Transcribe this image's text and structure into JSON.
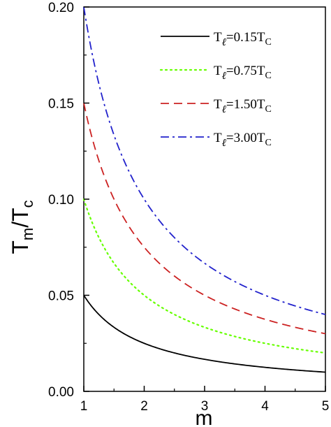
{
  "chart_data": {
    "type": "line",
    "xlabel": "m",
    "ylabel_main": "T",
    "ylabel_sub1": "m",
    "ylabel_slash": "/T",
    "ylabel_sub2": "c",
    "xlim": [
      1,
      5
    ],
    "ylim": [
      0,
      0.2
    ],
    "xticks": [
      1,
      2,
      3,
      4,
      5
    ],
    "yticks": [
      0.0,
      0.05,
      0.1,
      0.15,
      0.2
    ],
    "ytick_labels": [
      "0.00",
      "0.05",
      "0.10",
      "0.15",
      "0.20"
    ],
    "xtick_labels": [
      "1",
      "2",
      "3",
      "4",
      "5"
    ],
    "grid": false,
    "legend_position": "top-right",
    "series": [
      {
        "legend_main": "T",
        "legend_sub": "ℓ",
        "legend_value": "=0.15T",
        "legend_sub2": "C",
        "color": "#000000",
        "dash": "solid",
        "x": [
          1.0,
          1.25,
          1.5,
          1.75,
          2.0,
          2.5,
          3.0,
          3.5,
          4.0,
          4.5,
          5.0
        ],
        "y": [
          0.05,
          0.04,
          0.0333,
          0.0286,
          0.025,
          0.02,
          0.0167,
          0.0143,
          0.0125,
          0.0111,
          0.01
        ]
      },
      {
        "legend_main": "T",
        "legend_sub": "ℓ",
        "legend_value": "=0.75T",
        "legend_sub2": "C",
        "color": "#66ff00",
        "dash": "dotted",
        "x": [
          1.0,
          1.25,
          1.5,
          1.75,
          2.0,
          2.5,
          3.0,
          3.5,
          4.0,
          4.5,
          5.0
        ],
        "y": [
          0.1,
          0.08,
          0.0667,
          0.0571,
          0.05,
          0.04,
          0.0333,
          0.0286,
          0.025,
          0.0222,
          0.02
        ]
      },
      {
        "legend_main": "T",
        "legend_sub": "ℓ",
        "legend_value": "=1.50T",
        "legend_sub2": "C",
        "color": "#cc2222",
        "dash": "dashed",
        "x": [
          1.0,
          1.25,
          1.5,
          1.75,
          2.0,
          2.5,
          3.0,
          3.5,
          4.0,
          4.5,
          5.0
        ],
        "y": [
          0.15,
          0.12,
          0.1,
          0.0857,
          0.075,
          0.06,
          0.05,
          0.0429,
          0.0375,
          0.0333,
          0.03
        ]
      },
      {
        "legend_main": "T",
        "legend_sub": "ℓ",
        "legend_value": "=3.00T",
        "legend_sub2": "C",
        "color": "#2222cc",
        "dash": "dashdot",
        "x": [
          1.0,
          1.25,
          1.5,
          1.75,
          2.0,
          2.5,
          3.0,
          3.5,
          4.0,
          4.5,
          5.0
        ],
        "y": [
          0.2,
          0.16,
          0.1333,
          0.1143,
          0.1,
          0.08,
          0.0667,
          0.0571,
          0.05,
          0.0444,
          0.04
        ]
      }
    ]
  }
}
